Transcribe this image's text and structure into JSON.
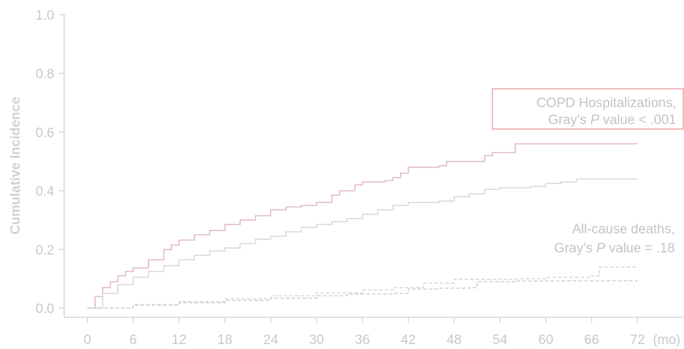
{
  "chart_data": {
    "type": "line",
    "ylabel": "Cumulative Incidence",
    "xlim": [
      0,
      72
    ],
    "ylim": [
      0,
      1.0
    ],
    "x_ticks": [
      "0",
      "6",
      "12",
      "18",
      "24",
      "30",
      "36",
      "42",
      "48",
      "54",
      "60",
      "66",
      "72"
    ],
    "x_unit": "(mo)",
    "y_ticks": [
      "0.0",
      "0.2",
      "0.4",
      "0.6",
      "0.8",
      "1.0"
    ],
    "grid": false,
    "colors": {
      "copd_group_a": "#e2b9c3",
      "copd_group_b": "#d9d9d9",
      "death_group_a": "#d8d8d8",
      "death_group_b": "#cfcfcf",
      "box_border": "#f3b9bc"
    },
    "series": [
      {
        "style": "solid",
        "color": "#e2b9c3",
        "x": [
          0,
          1,
          2,
          3,
          4,
          5,
          6,
          8,
          10,
          11,
          12,
          14,
          16,
          18,
          20,
          22,
          24,
          26,
          28,
          30,
          32,
          33,
          35,
          36,
          38,
          39,
          40,
          41,
          42,
          44,
          46,
          47,
          48,
          50,
          52,
          53,
          54,
          55,
          56,
          72
        ],
        "y": [
          0,
          0.04,
          0.07,
          0.09,
          0.11,
          0.125,
          0.137,
          0.165,
          0.2,
          0.215,
          0.232,
          0.25,
          0.265,
          0.285,
          0.3,
          0.315,
          0.335,
          0.345,
          0.35,
          0.36,
          0.385,
          0.4,
          0.42,
          0.43,
          0.43,
          0.435,
          0.445,
          0.46,
          0.48,
          0.48,
          0.485,
          0.5,
          0.5,
          0.5,
          0.52,
          0.53,
          0.53,
          0.53,
          0.56,
          0.56
        ]
      },
      {
        "style": "solid",
        "color": "#d9d9d9",
        "x": [
          0,
          2,
          4,
          6,
          8,
          10,
          12,
          14,
          16,
          18,
          20,
          22,
          24,
          26,
          28,
          30,
          32,
          34,
          36,
          38,
          40,
          42,
          44,
          46,
          48,
          50,
          52,
          54,
          56,
          58,
          60,
          62,
          64,
          72
        ],
        "y": [
          0,
          0.05,
          0.08,
          0.105,
          0.125,
          0.145,
          0.165,
          0.18,
          0.195,
          0.205,
          0.22,
          0.235,
          0.245,
          0.26,
          0.275,
          0.285,
          0.295,
          0.305,
          0.32,
          0.335,
          0.35,
          0.36,
          0.36,
          0.365,
          0.38,
          0.39,
          0.405,
          0.41,
          0.41,
          0.415,
          0.425,
          0.43,
          0.44,
          0.44
        ]
      },
      {
        "style": "dashed",
        "color": "#d8d8d8",
        "x": [
          0,
          6,
          12,
          18,
          24,
          30,
          36,
          40,
          44,
          48,
          52,
          56,
          60,
          62,
          66,
          67,
          72
        ],
        "y": [
          0,
          0.012,
          0.022,
          0.032,
          0.042,
          0.052,
          0.062,
          0.07,
          0.085,
          0.098,
          0.098,
          0.1,
          0.105,
          0.105,
          0.11,
          0.14,
          0.14
        ]
      },
      {
        "style": "dashed",
        "color": "#cfcfcf",
        "x": [
          0,
          6,
          12,
          18,
          24,
          30,
          34,
          40,
          42,
          46,
          50,
          51,
          56,
          60,
          72
        ],
        "y": [
          0,
          0.01,
          0.018,
          0.026,
          0.034,
          0.042,
          0.048,
          0.05,
          0.065,
          0.068,
          0.07,
          0.09,
          0.092,
          0.093,
          0.093
        ]
      }
    ],
    "annotations": [
      {
        "boxed": true,
        "line1": "COPD Hospitalizations,",
        "line2_prefix": "Gray’s ",
        "line2_italic": "P",
        "line2_suffix": " value < .001"
      },
      {
        "boxed": false,
        "line1": "All-cause deaths,",
        "line2_prefix": "Gray’s ",
        "line2_italic": "P",
        "line2_suffix": " value = .18"
      }
    ]
  }
}
